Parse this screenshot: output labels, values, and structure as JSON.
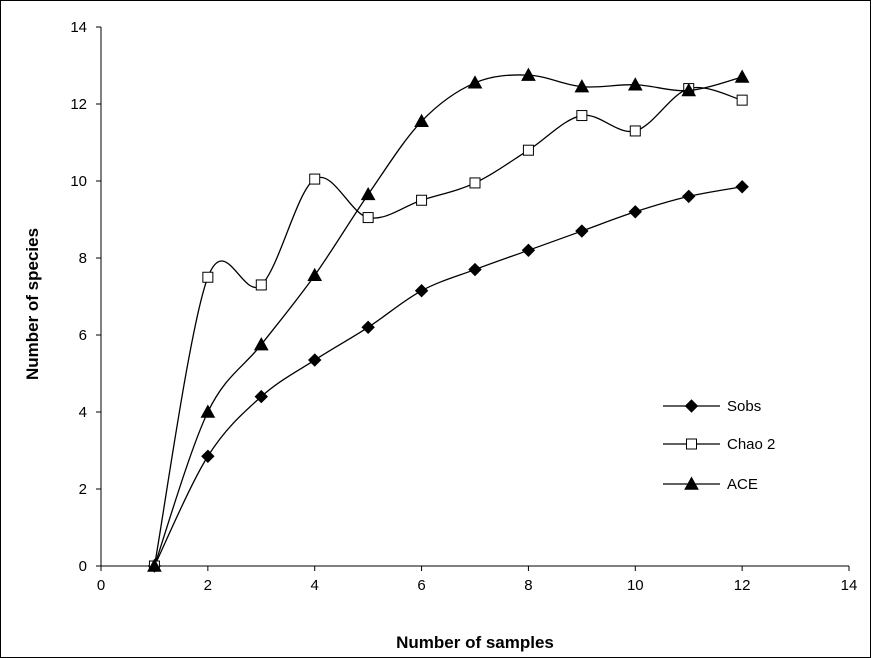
{
  "chart_data": {
    "type": "line",
    "title": "",
    "xlabel": "Number of samples",
    "ylabel": "Number of species",
    "xlim": [
      0,
      14
    ],
    "ylim": [
      0,
      14
    ],
    "xticks": [
      0,
      2,
      4,
      6,
      8,
      10,
      12,
      14
    ],
    "yticks": [
      0,
      2,
      4,
      6,
      8,
      10,
      12,
      14
    ],
    "grid": false,
    "legend_position": "right",
    "x": [
      1,
      2,
      3,
      4,
      5,
      6,
      7,
      8,
      9,
      10,
      11,
      12
    ],
    "series": [
      {
        "name": "Sobs",
        "marker": "diamond",
        "color": "#000000",
        "values": [
          0,
          2.85,
          4.4,
          5.35,
          6.2,
          7.15,
          7.7,
          8.2,
          8.7,
          9.2,
          9.6,
          9.85
        ]
      },
      {
        "name": "Chao 2",
        "marker": "square-open",
        "color": "#000000",
        "values": [
          0,
          7.5,
          7.3,
          10.05,
          9.05,
          9.5,
          9.95,
          10.8,
          11.7,
          11.3,
          12.4,
          12.1
        ]
      },
      {
        "name": "ACE",
        "marker": "triangle",
        "color": "#000000",
        "values": [
          0,
          4.0,
          5.75,
          7.55,
          9.65,
          11.55,
          12.55,
          12.75,
          12.45,
          12.5,
          12.35,
          12.7
        ]
      }
    ]
  }
}
